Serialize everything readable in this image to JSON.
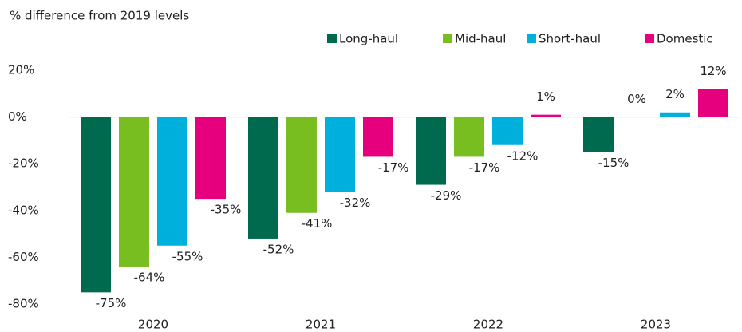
{
  "chart_data": {
    "type": "bar",
    "y_label": "% difference from 2019 levels",
    "categories": [
      "2020",
      "2021",
      "2022",
      "2023"
    ],
    "series": [
      {
        "name": "Long-haul",
        "color": "#006a4e",
        "values": [
          -75,
          -52,
          -29,
          -15
        ],
        "value_labels": [
          "-75%",
          "-52%",
          "-29%",
          "-15%"
        ]
      },
      {
        "name": "Mid-haul",
        "color": "#78be20",
        "values": [
          -64,
          -41,
          -17,
          0
        ],
        "value_labels": [
          "-64%",
          "-41%",
          "-17%",
          "0%"
        ]
      },
      {
        "name": "Short-haul",
        "color": "#00b0dc",
        "values": [
          -55,
          -32,
          -12,
          2
        ],
        "value_labels": [
          "-55%",
          "-32%",
          "-12%",
          "2%"
        ]
      },
      {
        "name": "Domestic",
        "color": "#e6007e",
        "values": [
          -35,
          -17,
          1,
          12
        ],
        "value_labels": [
          "-35%",
          "-17%",
          "1%",
          "12%"
        ]
      }
    ],
    "ylim": [
      -80,
      20
    ],
    "yticks": [
      {
        "value": -80,
        "label": "-80%"
      },
      {
        "value": -60,
        "label": "-60%"
      },
      {
        "value": -40,
        "label": "-40%"
      },
      {
        "value": -20,
        "label": "-20%"
      },
      {
        "value": 0,
        "label": "0%"
      },
      {
        "value": 20,
        "label": "20%"
      }
    ],
    "legend": "top-right"
  }
}
